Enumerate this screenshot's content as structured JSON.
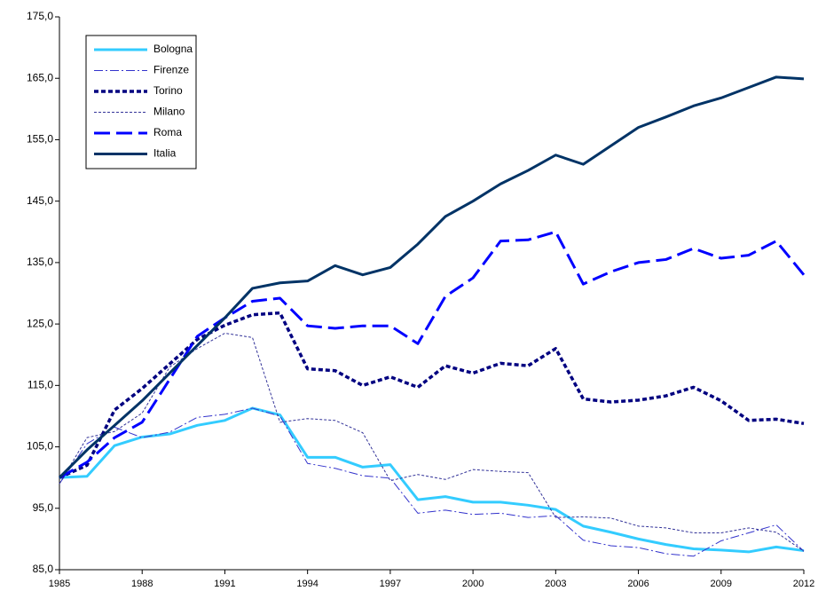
{
  "chart_data": {
    "type": "line",
    "x": [
      1985,
      1986,
      1987,
      1988,
      1989,
      1990,
      1991,
      1992,
      1993,
      1994,
      1995,
      1996,
      1997,
      1998,
      1999,
      2000,
      2001,
      2002,
      2003,
      2004,
      2005,
      2006,
      2007,
      2008,
      2009,
      2010,
      2011,
      2012
    ],
    "xlim": [
      1985,
      2012
    ],
    "xticks": [
      1985,
      1988,
      1991,
      1994,
      1997,
      2000,
      2003,
      2006,
      2009,
      2012
    ],
    "ylim": [
      85,
      175
    ],
    "yticks": [
      {
        "value": 85,
        "label": "85,0"
      },
      {
        "value": 95,
        "label": "95,0"
      },
      {
        "value": 105,
        "label": "105,0"
      },
      {
        "value": 115,
        "label": "115,0"
      },
      {
        "value": 125,
        "label": "125,0"
      },
      {
        "value": 135,
        "label": "135,0"
      },
      {
        "value": 145,
        "label": "145,0"
      },
      {
        "value": 155,
        "label": "155,0"
      },
      {
        "value": 165,
        "label": "165,0"
      },
      {
        "value": 175,
        "label": "175,0"
      }
    ],
    "grid": false,
    "legend": "upper-left",
    "series": [
      {
        "name": "Bologna",
        "color": "#33ccff",
        "values": [
          100,
          100.2,
          105.2,
          106.6,
          107.1,
          108.5,
          109.3,
          111.3,
          110.2,
          103.3,
          103.3,
          101.7,
          102.1,
          96.4,
          96.9,
          96,
          96,
          95.5,
          94.8,
          92.1,
          91.1,
          90,
          89.1,
          88.4,
          88.2,
          87.9,
          88.7,
          88.1
        ]
      },
      {
        "name": "Firenze",
        "color": "#3333cc",
        "values": [
          99,
          105.5,
          108.2,
          106.5,
          107.4,
          109.8,
          110.3,
          111.3,
          110,
          102.3,
          101.5,
          100.3,
          99.9,
          94.2,
          94.7,
          94,
          94.2,
          93.5,
          93.8,
          89.8,
          88.9,
          88.6,
          87.6,
          87.2,
          89.7,
          91,
          92.3,
          88
        ]
      },
      {
        "name": "Torino",
        "color": "#000080",
        "values": [
          100,
          102,
          111,
          114.5,
          118.5,
          122.5,
          124.8,
          126.5,
          126.8,
          117.7,
          117.4,
          115,
          116.4,
          114.7,
          118.2,
          117,
          118.6,
          118.2,
          121,
          112.8,
          112.3,
          112.6,
          113.3,
          114.7,
          112.5,
          109.3,
          109.5,
          108.8
        ]
      },
      {
        "name": "Milano",
        "color": "#333399",
        "values": [
          99,
          106.5,
          107.5,
          110.5,
          118,
          121,
          123.5,
          122.8,
          109,
          109.6,
          109.3,
          107.3,
          99.5,
          100.5,
          99.7,
          101.3,
          101,
          100.8,
          93.5,
          93.6,
          93.4,
          92.1,
          91.8,
          91,
          91,
          91.8,
          91.1,
          88
        ]
      },
      {
        "name": "Roma",
        "color": "#0000ff",
        "values": [
          100,
          102.5,
          106.5,
          109,
          116,
          123,
          126,
          128.7,
          129.2,
          124.7,
          124.3,
          124.7,
          124.7,
          121.8,
          129.5,
          132.5,
          138.5,
          138.7,
          140,
          131.5,
          133.5,
          135,
          135.5,
          137.3,
          135.7,
          136.2,
          138.5,
          133
        ]
      },
      {
        "name": "Italia",
        "color": "#003366",
        "values": [
          100,
          104.5,
          108.5,
          112.5,
          117,
          121.5,
          126,
          130.8,
          131.7,
          132,
          134.5,
          133,
          134.2,
          138,
          142.5,
          145,
          147.8,
          150,
          152.5,
          151,
          154,
          157,
          158.7,
          160.5,
          161.8,
          163.5,
          165.2,
          164.9
        ]
      }
    ]
  }
}
